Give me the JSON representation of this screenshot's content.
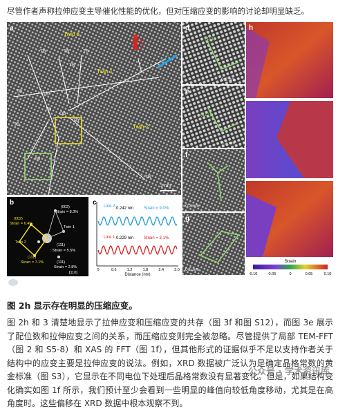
{
  "intro": "尽管作者声称拉伸应变主导催化性能的优化，但对压缩应变的影响的讨论却明显缺乏。",
  "figure": {
    "a": {
      "label": "a",
      "twins": [
        "Twin 3",
        "Twin 1",
        "Twin 2"
      ],
      "tb": [
        "TB",
        "TB",
        "TB",
        "TB",
        "TB",
        "TB",
        "TB",
        "TB",
        "TB",
        "TB",
        "TB"
      ],
      "ob": "OB",
      "line1": "Line 1",
      "line2": "Line 2",
      "scale": "2 nm"
    },
    "b": {
      "label": "b",
      "texts": [
        "(002)",
        "Strain = 8.3%",
        "(002)",
        "Strain = 6.4%",
        "Twin 1",
        "Twin 2",
        "(111)",
        "Strain = 5.5%",
        "(111)",
        "Strain = 7.1%",
        "(111)",
        "Strain = 2.8%",
        "[110]"
      ]
    },
    "c": {
      "label": "c",
      "texts": [
        "Line 2",
        "0.242 nm",
        "Strain = 9.0%",
        "Line 1",
        "0.229 nm",
        "Strain = 3.1%"
      ],
      "xticks": [
        "0",
        "0.6",
        "1.2",
        "1.8",
        "2.4",
        "3.0"
      ],
      "xlabel": "Distance (nm)"
    },
    "d": {
      "label": "d",
      "plane": "(111)",
      "scale": "0.2 nm"
    },
    "e": {
      "label": "e",
      "plane": "(111)",
      "scale": "0.2 nm"
    },
    "f": {
      "label": "f",
      "scale": "0.3 nm"
    },
    "g": {
      "label": "g",
      "scale": "0.5 nm"
    },
    "h": {
      "label": "h",
      "colorbar_title": "Strain",
      "colorbar_ticks": [
        "-0.10",
        "-0.05",
        "0",
        "0.05",
        "0.10"
      ]
    }
  },
  "heading": "图 2h 显示存在明显的压缩应变。",
  "paragraph": "图 2h 和 3 清楚地显示了拉伸应变和压缩应变的共存（图 3f 和图 S12），而图 3e 展示了配位数和拉伸应变之间的关系，而压缩应变则完全被忽略。尽管提供了局部 TEM-FFT（图 2 和 S5-8）和 XAS 的 FFT（图 1f），但其他形式的证据似乎不足以支持作者关于结构中的应变主要是拉伸应变的说法。例如，XRD 数据被广泛认为是确定晶格常数的黄金标准（图 S3），它显示在不同电位下处理后晶格常数没有显著变化。但是，如果结构变化确实如图 1f 所示，我们预计至少会看到一些明显的峰值向较低角度移动，尤其是在高角度时。这些偏移在 XRD 数据中根本观察不到。",
  "watermark": "公众号 · 学术资讯库"
}
